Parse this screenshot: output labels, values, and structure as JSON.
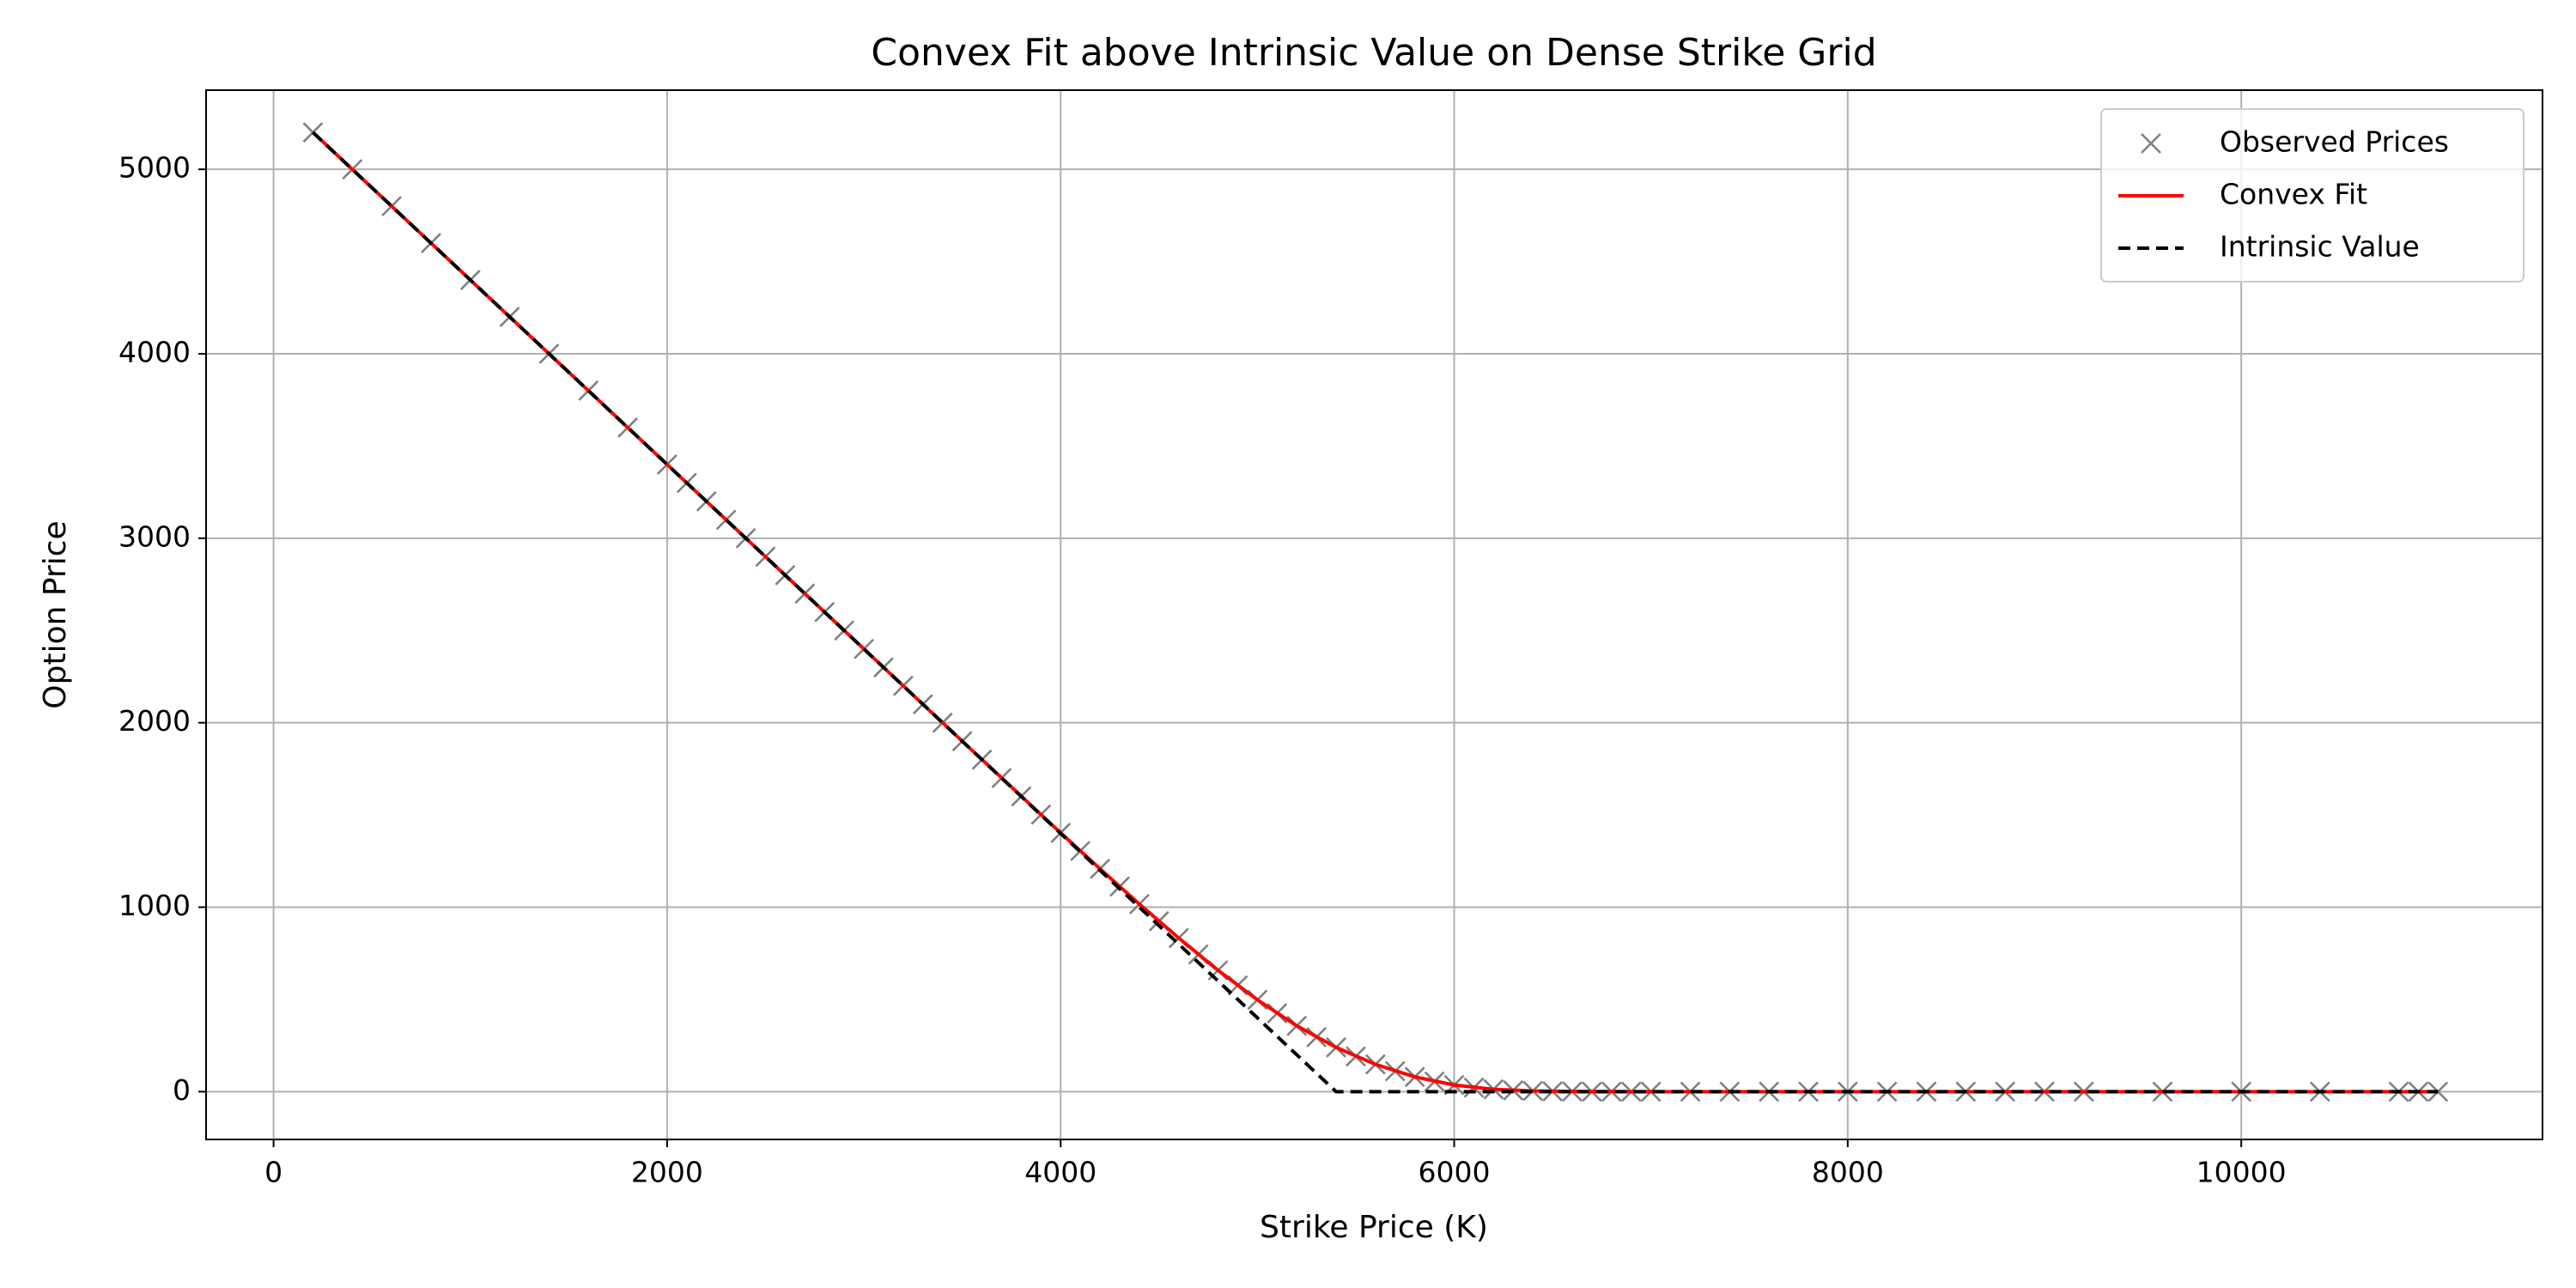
{
  "chart_data": {
    "type": "line",
    "title": "Convex Fit above Intrinsic Value on Dense Strike Grid",
    "xlabel": "Strike Price (K)",
    "ylabel": "Option Price",
    "xlim": [
      -343,
      11531
    ],
    "ylim": [
      -259,
      5429
    ],
    "xticks": [
      0,
      2000,
      4000,
      6000,
      8000,
      10000
    ],
    "yticks": [
      0,
      1000,
      2000,
      3000,
      4000,
      5000
    ],
    "grid": true,
    "legend": "upper right",
    "series": [
      {
        "name": "Observed Prices",
        "color": "#808080",
        "marker": "x",
        "linestyle": "none",
        "x": [
          200,
          400,
          600,
          800,
          1000,
          1200,
          1400,
          1600,
          1800,
          2000,
          2100,
          2200,
          2300,
          2400,
          2500,
          2600,
          2700,
          2800,
          2900,
          3000,
          3100,
          3200,
          3300,
          3400,
          3500,
          3600,
          3700,
          3800,
          3900,
          4000,
          4100,
          4200,
          4300,
          4400,
          4500,
          4600,
          4700,
          4800,
          4900,
          5000,
          5100,
          5200,
          5300,
          5400,
          5500,
          5600,
          5700,
          5800,
          5900,
          6000,
          6100,
          6200,
          6300,
          6400,
          6500,
          6600,
          6700,
          6800,
          6900,
          7000,
          7200,
          7400,
          7600,
          7800,
          8000,
          8200,
          8400,
          8600,
          8800,
          9000,
          9200,
          9600,
          10000,
          10400,
          10800,
          10900,
          11000
        ],
        "values": [
          5200,
          5000,
          4800,
          4600,
          4400,
          4200,
          4000,
          3800,
          3600,
          3400,
          3300,
          3200,
          3100,
          3000,
          2900,
          2800,
          2700,
          2600,
          2500,
          2400,
          2300,
          2200,
          2100,
          2000,
          1900,
          1800,
          1700,
          1601,
          1502,
          1403,
          1305,
          1208,
          1112,
          1017,
          924,
          833,
          744,
          658,
          576,
          498,
          425,
          357,
          295,
          240,
          191,
          148,
          111,
          80,
          55,
          36,
          22,
          13,
          7,
          4,
          2,
          1,
          0,
          0,
          0,
          0,
          0,
          0,
          0,
          0,
          0,
          0,
          0,
          0,
          0,
          0,
          0,
          0,
          0,
          0,
          0,
          0,
          0
        ]
      },
      {
        "name": "Convex Fit",
        "color": "#ff0000",
        "linestyle": "solid",
        "x": [
          200,
          2000,
          3000,
          3500,
          4000,
          4200,
          4400,
          4600,
          4800,
          5000,
          5200,
          5400,
          5600,
          5800,
          6000,
          6200,
          6400,
          6600,
          7000,
          11000
        ],
        "values": [
          5200,
          3400,
          2400,
          1900,
          1403,
          1208,
          1017,
          833,
          658,
          498,
          357,
          240,
          148,
          80,
          36,
          13,
          4,
          1,
          0,
          0
        ]
      },
      {
        "name": "Intrinsic Value",
        "color": "#000000",
        "linestyle": "dashed",
        "x": [
          200,
          5400,
          11000
        ],
        "values": [
          5200,
          0,
          0
        ]
      }
    ]
  }
}
